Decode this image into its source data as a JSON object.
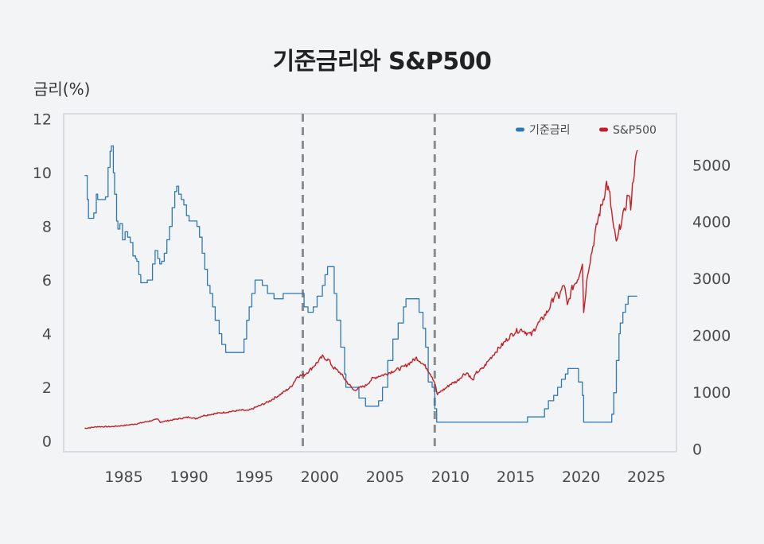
{
  "chart_data": {
    "type": "line",
    "title": "기준금리와 S&P500",
    "ylabel_left": "금리(%)",
    "ylabel_right": "",
    "xlim": [
      1980.4,
      2027.3
    ],
    "x_ticks": [
      1985,
      1990,
      1995,
      2000,
      2005,
      2010,
      2015,
      2020,
      2025
    ],
    "y_left_lim": [
      -0.4,
      12.2
    ],
    "y_left_ticks": [
      0,
      2,
      4,
      6,
      8,
      10,
      12
    ],
    "y_right_lim": [
      -52,
      5900
    ],
    "y_right_ticks": [
      0,
      1000,
      2000,
      3000,
      4000,
      5000
    ],
    "vlines": [
      1998.7,
      2008.8
    ],
    "legend": [
      "기준금리",
      "S&P500"
    ],
    "legend_position": "top-right",
    "series": [
      {
        "name": "기준금리",
        "axis": "left",
        "color": "#2e78b5",
        "points": [
          [
            1982.0,
            9.9
          ],
          [
            1982.2,
            9.0
          ],
          [
            1982.3,
            8.3
          ],
          [
            1982.5,
            8.3
          ],
          [
            1982.7,
            8.5
          ],
          [
            1982.9,
            9.2
          ],
          [
            1983.0,
            9.0
          ],
          [
            1983.4,
            9.0
          ],
          [
            1983.6,
            9.1
          ],
          [
            1983.8,
            10.2
          ],
          [
            1983.95,
            10.8
          ],
          [
            1984.05,
            11.0
          ],
          [
            1984.2,
            10.0
          ],
          [
            1984.3,
            9.2
          ],
          [
            1984.45,
            8.2
          ],
          [
            1984.55,
            7.9
          ],
          [
            1984.7,
            8.1
          ],
          [
            1984.9,
            7.5
          ],
          [
            1985.1,
            7.8
          ],
          [
            1985.3,
            7.6
          ],
          [
            1985.5,
            7.4
          ],
          [
            1985.7,
            6.9
          ],
          [
            1985.9,
            6.8
          ],
          [
            1986.0,
            6.7
          ],
          [
            1986.15,
            6.2
          ],
          [
            1986.3,
            5.9
          ],
          [
            1986.6,
            5.9
          ],
          [
            1986.8,
            6.0
          ],
          [
            1987.0,
            6.0
          ],
          [
            1987.2,
            6.6
          ],
          [
            1987.4,
            7.1
          ],
          [
            1987.6,
            6.8
          ],
          [
            1987.75,
            6.6
          ],
          [
            1987.9,
            6.7
          ],
          [
            1988.1,
            7.0
          ],
          [
            1988.3,
            7.5
          ],
          [
            1988.5,
            8.0
          ],
          [
            1988.7,
            8.7
          ],
          [
            1988.9,
            9.3
          ],
          [
            1989.05,
            9.5
          ],
          [
            1989.2,
            9.2
          ],
          [
            1989.4,
            9.0
          ],
          [
            1989.6,
            8.8
          ],
          [
            1989.8,
            8.4
          ],
          [
            1990.0,
            8.2
          ],
          [
            1990.4,
            8.2
          ],
          [
            1990.6,
            8.0
          ],
          [
            1990.8,
            7.6
          ],
          [
            1991.0,
            7.0
          ],
          [
            1991.2,
            6.4
          ],
          [
            1991.4,
            5.8
          ],
          [
            1991.6,
            5.5
          ],
          [
            1991.8,
            5.0
          ],
          [
            1992.0,
            4.5
          ],
          [
            1992.3,
            4.0
          ],
          [
            1992.5,
            3.6
          ],
          [
            1992.8,
            3.3
          ],
          [
            1993.5,
            3.3
          ],
          [
            1994.0,
            3.3
          ],
          [
            1994.2,
            3.8
          ],
          [
            1994.4,
            4.5
          ],
          [
            1994.6,
            5.0
          ],
          [
            1994.8,
            5.5
          ],
          [
            1995.05,
            6.0
          ],
          [
            1995.4,
            6.0
          ],
          [
            1995.6,
            5.8
          ],
          [
            1996.0,
            5.5
          ],
          [
            1996.5,
            5.3
          ],
          [
            1997.2,
            5.5
          ],
          [
            1998.0,
            5.5
          ],
          [
            1998.6,
            5.5
          ],
          [
            1998.8,
            5.0
          ],
          [
            1999.1,
            4.8
          ],
          [
            1999.5,
            5.0
          ],
          [
            1999.8,
            5.4
          ],
          [
            2000.2,
            5.8
          ],
          [
            2000.4,
            6.2
          ],
          [
            2000.6,
            6.5
          ],
          [
            2000.9,
            6.5
          ],
          [
            2001.1,
            5.5
          ],
          [
            2001.3,
            4.5
          ],
          [
            2001.6,
            3.5
          ],
          [
            2001.9,
            2.5
          ],
          [
            2002.0,
            2.0
          ],
          [
            2002.5,
            2.0
          ],
          [
            2003.0,
            1.6
          ],
          [
            2003.5,
            1.3
          ],
          [
            2004.3,
            1.3
          ],
          [
            2004.5,
            1.5
          ],
          [
            2004.8,
            2.0
          ],
          [
            2005.2,
            3.0
          ],
          [
            2005.6,
            3.8
          ],
          [
            2006.0,
            4.4
          ],
          [
            2006.4,
            5.0
          ],
          [
            2006.6,
            5.3
          ],
          [
            2007.4,
            5.3
          ],
          [
            2007.6,
            4.8
          ],
          [
            2007.9,
            4.2
          ],
          [
            2008.1,
            3.5
          ],
          [
            2008.3,
            2.2
          ],
          [
            2008.6,
            2.0
          ],
          [
            2008.8,
            1.2
          ],
          [
            2008.95,
            0.7
          ],
          [
            2009.2,
            0.7
          ],
          [
            2012.0,
            0.7
          ],
          [
            2015.5,
            0.7
          ],
          [
            2015.9,
            0.9
          ],
          [
            2016.9,
            0.9
          ],
          [
            2017.2,
            1.2
          ],
          [
            2017.5,
            1.5
          ],
          [
            2017.9,
            1.7
          ],
          [
            2018.2,
            2.0
          ],
          [
            2018.5,
            2.3
          ],
          [
            2018.8,
            2.5
          ],
          [
            2019.0,
            2.7
          ],
          [
            2019.5,
            2.7
          ],
          [
            2019.8,
            2.2
          ],
          [
            2020.1,
            1.7
          ],
          [
            2020.2,
            0.7
          ],
          [
            2021.8,
            0.7
          ],
          [
            2022.2,
            0.7
          ],
          [
            2022.35,
            1.0
          ],
          [
            2022.5,
            1.8
          ],
          [
            2022.7,
            3.0
          ],
          [
            2022.9,
            4.0
          ],
          [
            2023.0,
            4.4
          ],
          [
            2023.2,
            4.8
          ],
          [
            2023.4,
            5.1
          ],
          [
            2023.6,
            5.4
          ],
          [
            2024.0,
            5.4
          ],
          [
            2024.3,
            5.4
          ]
        ]
      },
      {
        "name": "S&P500",
        "axis": "right",
        "color": "#c41e25",
        "points": [
          [
            1982.0,
            360
          ],
          [
            1983.0,
            390
          ],
          [
            1984.0,
            390
          ],
          [
            1985.0,
            410
          ],
          [
            1986.0,
            440
          ],
          [
            1987.0,
            490
          ],
          [
            1987.6,
            520
          ],
          [
            1987.8,
            470
          ],
          [
            1988.5,
            500
          ],
          [
            1989.5,
            540
          ],
          [
            1990.0,
            560
          ],
          [
            1990.5,
            530
          ],
          [
            1991.0,
            580
          ],
          [
            1992.0,
            620
          ],
          [
            1993.0,
            650
          ],
          [
            1994.0,
            680
          ],
          [
            1994.5,
            670
          ],
          [
            1995.0,
            720
          ],
          [
            1996.0,
            820
          ],
          [
            1997.0,
            960
          ],
          [
            1997.8,
            1090
          ],
          [
            1998.3,
            1280
          ],
          [
            1998.8,
            1300
          ],
          [
            1999.3,
            1400
          ],
          [
            1999.8,
            1520
          ],
          [
            2000.2,
            1620
          ],
          [
            2000.7,
            1560
          ],
          [
            2001.0,
            1440
          ],
          [
            2001.6,
            1330
          ],
          [
            2002.0,
            1200
          ],
          [
            2002.6,
            1030
          ],
          [
            2002.9,
            1060
          ],
          [
            2003.5,
            1110
          ],
          [
            2004.0,
            1230
          ],
          [
            2004.5,
            1280
          ],
          [
            2005.0,
            1310
          ],
          [
            2005.5,
            1360
          ],
          [
            2006.0,
            1400
          ],
          [
            2006.5,
            1450
          ],
          [
            2007.0,
            1530
          ],
          [
            2007.4,
            1600
          ],
          [
            2007.8,
            1520
          ],
          [
            2008.2,
            1420
          ],
          [
            2008.6,
            1270
          ],
          [
            2008.8,
            1160
          ],
          [
            2009.0,
            950
          ],
          [
            2009.2,
            1000
          ],
          [
            2009.6,
            1060
          ],
          [
            2010.0,
            1140
          ],
          [
            2010.5,
            1190
          ],
          [
            2011.0,
            1310
          ],
          [
            2011.3,
            1340
          ],
          [
            2011.7,
            1200
          ],
          [
            2012.0,
            1340
          ],
          [
            2012.5,
            1420
          ],
          [
            2013.0,
            1580
          ],
          [
            2013.5,
            1720
          ],
          [
            2014.0,
            1840
          ],
          [
            2014.5,
            1970
          ],
          [
            2015.0,
            2070
          ],
          [
            2015.5,
            2100
          ],
          [
            2015.9,
            2030
          ],
          [
            2016.2,
            2010
          ],
          [
            2016.6,
            2170
          ],
          [
            2017.0,
            2280
          ],
          [
            2017.5,
            2440
          ],
          [
            2018.0,
            2720
          ],
          [
            2018.3,
            2680
          ],
          [
            2018.7,
            2900
          ],
          [
            2018.95,
            2510
          ],
          [
            2019.3,
            2820
          ],
          [
            2019.8,
            3020
          ],
          [
            2020.1,
            3300
          ],
          [
            2020.2,
            2400
          ],
          [
            2020.5,
            3100
          ],
          [
            2020.9,
            3560
          ],
          [
            2021.3,
            4050
          ],
          [
            2021.7,
            4400
          ],
          [
            2021.95,
            4680
          ],
          [
            2022.2,
            4450
          ],
          [
            2022.5,
            3850
          ],
          [
            2022.75,
            3620
          ],
          [
            2023.0,
            3950
          ],
          [
            2023.3,
            4150
          ],
          [
            2023.6,
            4500
          ],
          [
            2023.8,
            4280
          ],
          [
            2024.0,
            4780
          ],
          [
            2024.2,
            5100
          ],
          [
            2024.35,
            5250
          ]
        ]
      }
    ]
  }
}
